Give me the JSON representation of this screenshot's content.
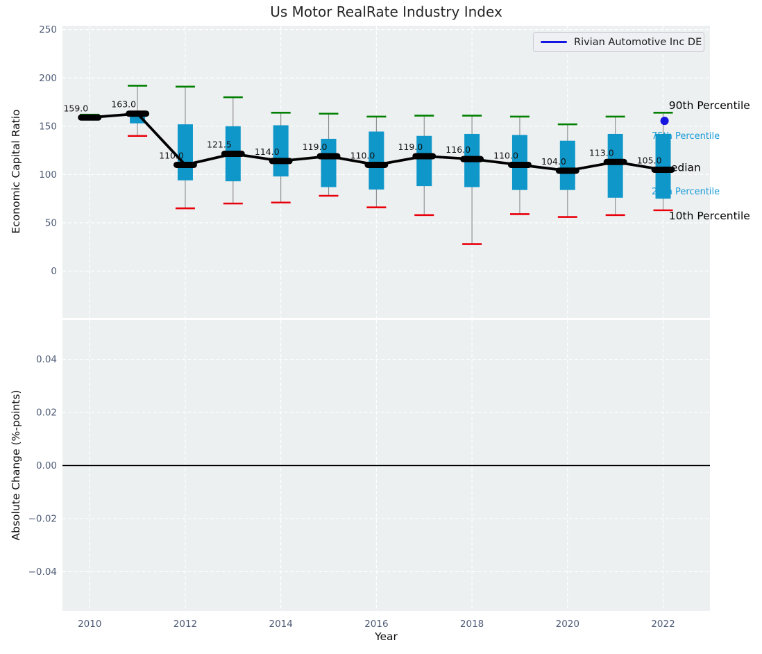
{
  "title": "Us Motor RealRate Industry Index",
  "legend": {
    "label": "Rivian Automotive Inc DE"
  },
  "axes": {
    "top_ylabel": "Economic Capital Ratio",
    "bottom_ylabel": "Absolute Change (%-points)",
    "xlabel": "Year"
  },
  "colors": {
    "panel_bg": "#edf0f1",
    "grid": "#ffffff",
    "box_fill": "#1097c9",
    "whisker": "#8a8a8a",
    "cap_high": "#008000",
    "cap_low": "#e8000b",
    "median": "#000000",
    "rivian": "#1515e0",
    "tick_label": "#4d5b76",
    "annotation_cyan": "#1a9cd8",
    "annotation_black": "#000000",
    "zero_line": "#000000",
    "median_label": "#111111"
  },
  "chart_data": {
    "type": "boxplot",
    "title": "Us Motor RealRate Industry Index",
    "x": {
      "xlabel": "Year",
      "xlim": [
        2009.43,
        2022.98
      ],
      "xticks": [
        2010,
        2012,
        2014,
        2016,
        2018,
        2020,
        2022
      ],
      "xtick_labels": [
        "2010",
        "2012",
        "2014",
        "2016",
        "2018",
        "2020",
        "2022"
      ]
    },
    "panels": [
      {
        "name": "economic-capital-ratio",
        "ylabel": "Economic Capital Ratio",
        "ylim": [
          -48.5,
          254.1
        ],
        "yticks": [
          250,
          200,
          150,
          100,
          50,
          0
        ],
        "ytick_labels": [
          "250",
          "200",
          "150",
          "100",
          "50",
          "0"
        ],
        "grid": true,
        "legend_position": "upper right",
        "series_label": "Rivian Automotive Inc DE",
        "boxes": [
          {
            "year": 2010,
            "median": 159.0,
            "q1": 157.5,
            "q3": 160.5,
            "whisker_low": 157,
            "whisker_high": 162,
            "label": "159.0"
          },
          {
            "year": 2011,
            "median": 163.0,
            "q1": 153.0,
            "q3": 163.5,
            "whisker_low": 140,
            "whisker_high": 192,
            "label": "163.0"
          },
          {
            "year": 2012,
            "median": 110.0,
            "q1": 94.0,
            "q3": 152.0,
            "whisker_low": 65,
            "whisker_high": 191,
            "label": "110.0"
          },
          {
            "year": 2013,
            "median": 121.5,
            "q1": 93.0,
            "q3": 150.0,
            "whisker_low": 70,
            "whisker_high": 180,
            "label": "121.5"
          },
          {
            "year": 2014,
            "median": 114.0,
            "q1": 98.0,
            "q3": 151.0,
            "whisker_low": 71,
            "whisker_high": 164,
            "label": "114.0"
          },
          {
            "year": 2015,
            "median": 119.0,
            "q1": 87.0,
            "q3": 137.0,
            "whisker_low": 78,
            "whisker_high": 163,
            "label": "119.0"
          },
          {
            "year": 2016,
            "median": 110.0,
            "q1": 84.5,
            "q3": 144.5,
            "whisker_low": 66,
            "whisker_high": 160,
            "label": "110.0"
          },
          {
            "year": 2017,
            "median": 119.0,
            "q1": 88.0,
            "q3": 140.0,
            "whisker_low": 58,
            "whisker_high": 161,
            "label": "119.0"
          },
          {
            "year": 2018,
            "median": 116.0,
            "q1": 87.0,
            "q3": 142.0,
            "whisker_low": 28,
            "whisker_high": 161,
            "label": "116.0"
          },
          {
            "year": 2019,
            "median": 110.0,
            "q1": 84.0,
            "q3": 141.0,
            "whisker_low": 59,
            "whisker_high": 160,
            "label": "110.0"
          },
          {
            "year": 2020,
            "median": 104.0,
            "q1": 84.0,
            "q3": 135.0,
            "whisker_low": 56,
            "whisker_high": 152,
            "label": "104.0"
          },
          {
            "year": 2021,
            "median": 113.0,
            "q1": 76.0,
            "q3": 142.0,
            "whisker_low": 58,
            "whisker_high": 160,
            "label": "113.0"
          },
          {
            "year": 2022,
            "median": 105.0,
            "q1": 75.0,
            "q3": 142.0,
            "whisker_low": 63,
            "whisker_high": 164,
            "label": "105.0"
          }
        ],
        "median_line": [
          159.0,
          163.0,
          110.0,
          121.5,
          114.0,
          119.0,
          110.0,
          119.0,
          116.0,
          110.0,
          104.0,
          113.0,
          105.0
        ],
        "rivian_point": {
          "year": 2022.03,
          "value": 155.5
        },
        "annotations": [
          {
            "id": "90th-percentile",
            "text": "90th Percentile",
            "x_year": 2022.12,
            "value": 171.4,
            "color_key": "annotation_black",
            "font_size": 15.5
          },
          {
            "id": "75th-percentile",
            "text": "75th Percentile",
            "x_year": 2021.76,
            "value": 139.3,
            "color_key": "annotation_cyan",
            "font_size": 13
          },
          {
            "id": "median",
            "text": "Median",
            "x_year": 2021.97,
            "value": 107.0,
            "color_key": "annotation_black",
            "font_size": 15.5
          },
          {
            "id": "25th-percentile",
            "text": "25th Percentile",
            "x_year": 2021.76,
            "value": 82.0,
            "color_key": "annotation_cyan",
            "font_size": 13
          },
          {
            "id": "10th-percentile",
            "text": "10th Percentile",
            "x_year": 2022.12,
            "value": 57.0,
            "color_key": "annotation_black",
            "font_size": 15.5
          }
        ]
      },
      {
        "name": "absolute-change",
        "ylabel": "Absolute Change (%-points)",
        "ylim": [
          -0.0548,
          0.0548
        ],
        "yticks": [
          0.04,
          0.02,
          0.0,
          -0.02,
          -0.04
        ],
        "ytick_labels": [
          "0.04",
          "0.02",
          "0.00",
          "−0.02",
          "−0.04"
        ],
        "grid": true,
        "zero_line": 0.0
      }
    ]
  }
}
